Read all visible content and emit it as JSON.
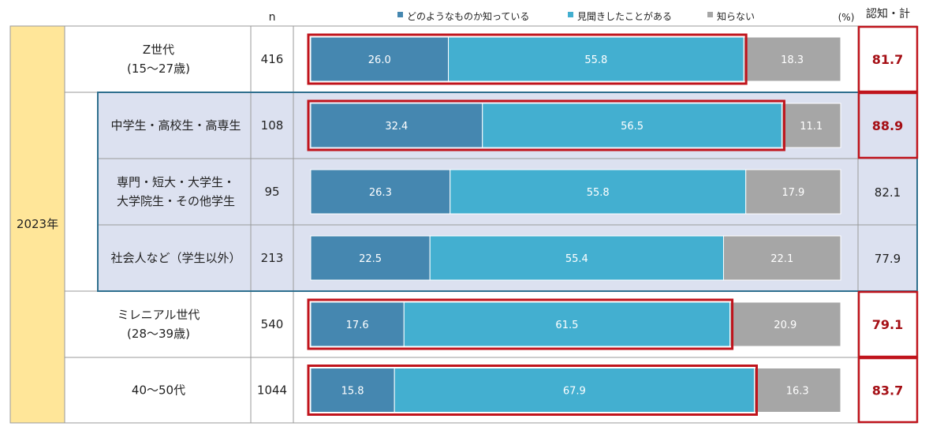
{
  "chart_data": {
    "type": "bar",
    "stacked": true,
    "orientation": "horizontal",
    "unit_label": "(%)",
    "n_header": "n",
    "total_header": "認知・計",
    "year_label": "2023年",
    "legend": [
      {
        "name": "どのようなものか知っている",
        "color": "#4587B0"
      },
      {
        "name": "見聞きしたことがある",
        "color": "#43AFD0"
      },
      {
        "name": "知らない",
        "color": "#A6A6A6"
      }
    ],
    "rows": [
      {
        "label_lines": [
          "Z世代",
          "(15～27歳)"
        ],
        "n": "416",
        "values": [
          26.0,
          55.8,
          18.3
        ],
        "labels": [
          "26.0",
          "55.8",
          "18.3"
        ],
        "total": "81.7",
        "emphasis": true
      },
      {
        "label_lines": [
          "中学生・高校生・高専生"
        ],
        "n": "108",
        "values": [
          32.4,
          56.5,
          11.1
        ],
        "labels": [
          "32.4",
          "56.5",
          "11.1"
        ],
        "total": "88.9",
        "emphasis": true
      },
      {
        "label_lines": [
          "専門・短大・大学生・",
          "大学院生・その他学生"
        ],
        "n": "95",
        "values": [
          26.3,
          55.8,
          17.9
        ],
        "labels": [
          "26.3",
          "55.8",
          "17.9"
        ],
        "total": "82.1",
        "emphasis": false
      },
      {
        "label_lines": [
          "社会人など（学生以外）"
        ],
        "n": "213",
        "values": [
          22.5,
          55.4,
          22.1
        ],
        "labels": [
          "22.5",
          "55.4",
          "22.1"
        ],
        "total": "77.9",
        "emphasis": false
      },
      {
        "label_lines": [
          "ミレニアル世代",
          "(28～39歳)"
        ],
        "n": "540",
        "values": [
          17.6,
          61.5,
          20.9
        ],
        "labels": [
          "17.6",
          "61.5",
          "20.9"
        ],
        "total": "79.1",
        "emphasis": true
      },
      {
        "label_lines": [
          "40～50代"
        ],
        "n": "1044",
        "values": [
          15.8,
          67.9,
          16.3
        ],
        "labels": [
          "15.8",
          "67.9",
          "16.3"
        ],
        "total": "83.7",
        "emphasis": true
      }
    ],
    "colors": {
      "highlight_border": "#C0141C",
      "emphasis_text": "#A50F15",
      "year_cell": "#FFE699",
      "subgroup_fill": "#DCE1F0",
      "subgroup_border": "#2E6F8E",
      "grid": "#9A9A9A"
    }
  }
}
